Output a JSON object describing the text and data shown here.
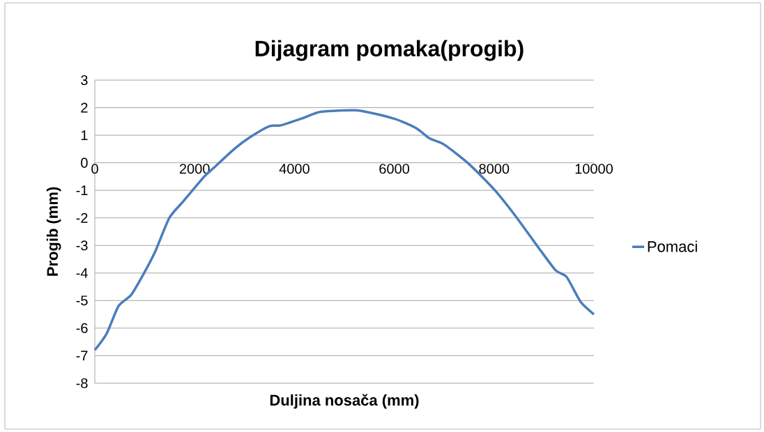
{
  "chart_data": {
    "type": "line",
    "title": "Dijagram pomaka(progib)",
    "xlabel": "Duljina nosača (mm)",
    "ylabel": "Progib (mm)",
    "x": [
      0,
      237,
      475,
      726,
      987,
      1215,
      1494,
      1773,
      2193,
      2374,
      2793,
      3128,
      3500,
      3730,
      4199,
      4525,
      5265,
      6000,
      6434,
      6713,
      6993,
      7500,
      8017,
      8436,
      8898,
      9232,
      9455,
      9735,
      10000
    ],
    "series": [
      {
        "name": "Pomaci",
        "color": "#4a7ebb",
        "values": [
          -6.8,
          -6.2,
          -5.2,
          -4.8,
          -4.0,
          -3.2,
          -2.0,
          -1.4,
          -0.5,
          -0.2,
          0.5,
          0.95,
          1.33,
          1.36,
          1.64,
          1.85,
          1.9,
          1.6,
          1.26,
          0.88,
          0.67,
          -0.05,
          -1.0,
          -1.95,
          -3.1,
          -3.9,
          -4.15,
          -5.05,
          -5.5
        ]
      }
    ],
    "xlim": [
      0,
      10000
    ],
    "ylim": [
      -8,
      3
    ],
    "xticks": [
      0,
      2000,
      4000,
      6000,
      8000,
      10000
    ],
    "yticks": [
      -8,
      -7,
      -6,
      -5,
      -4,
      -3,
      -2,
      -1,
      0,
      1,
      2,
      3
    ],
    "grid": "y",
    "legend": "right"
  }
}
